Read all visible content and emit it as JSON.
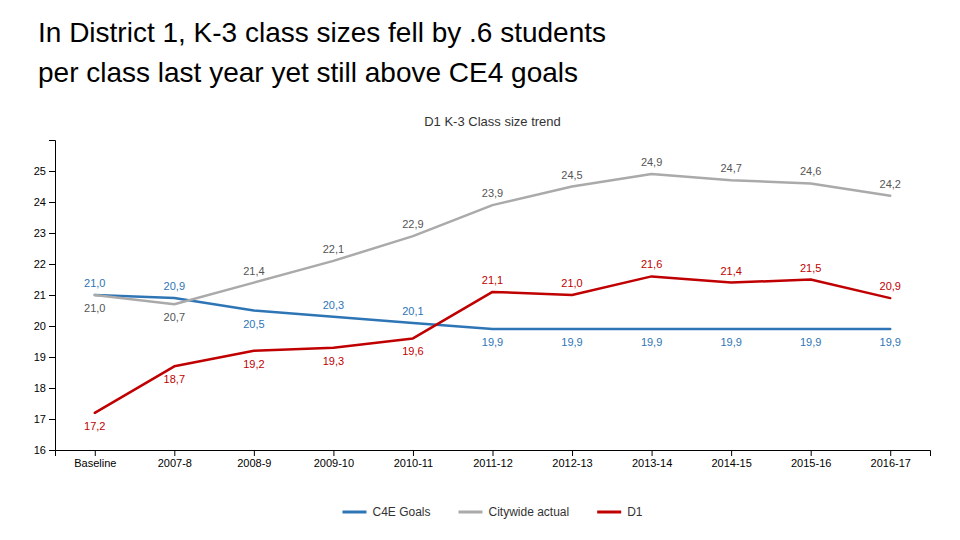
{
  "chart_data": {
    "type": "line",
    "title": "In District 1, K-3 class sizes fell  by .6 students",
    "subtitle": "per class last year yet still above CE4 goals",
    "annotations": [
      "D1 K-3 Class size trend"
    ],
    "categories": [
      "Baseline",
      "2007-8",
      "2008-9",
      "2009-10",
      "2010-11",
      "2011-12",
      "2012-13",
      "2013-14",
      "2014-15",
      "2015-16",
      "2016-17"
    ],
    "series": [
      {
        "name": "C4E Goals",
        "color": "#2E75B6",
        "values": [
          21.0,
          20.9,
          20.5,
          20.3,
          20.1,
          19.9,
          19.9,
          19.9,
          19.9,
          19.9,
          19.9
        ],
        "value_labels": [
          "21,0",
          "20,9",
          "20,5",
          "20,3",
          "20,1",
          "19,9",
          "19,9",
          "19,9",
          "19,9",
          "19,9",
          "19,9"
        ]
      },
      {
        "name": "Citywide actual",
        "color": "#AAAAAA",
        "values": [
          21.0,
          20.7,
          21.4,
          22.1,
          22.9,
          23.9,
          24.5,
          24.9,
          24.7,
          24.6,
          24.2
        ],
        "value_labels": [
          "21,0",
          "20,7",
          "21,4",
          "22,1",
          "22,9",
          "23,9",
          "24,5",
          "24,9",
          "24,7",
          "24,6",
          "24,2"
        ]
      },
      {
        "name": "D1",
        "color": "#C00000",
        "values": [
          17.2,
          18.7,
          19.2,
          19.3,
          19.6,
          21.1,
          21.0,
          21.6,
          21.4,
          21.5,
          20.9
        ],
        "value_labels": [
          "17,2",
          "18,7",
          "19,2",
          "19,3",
          "19,6",
          "21,1",
          "21,0",
          "21,6",
          "21,4",
          "21,5",
          "20,9"
        ]
      }
    ],
    "ylim": [
      16,
      26
    ],
    "yticks": [
      16,
      17,
      18,
      19,
      20,
      21,
      22,
      23,
      24,
      25
    ],
    "grid": false,
    "legend": "bottom",
    "data_labels": true
  }
}
